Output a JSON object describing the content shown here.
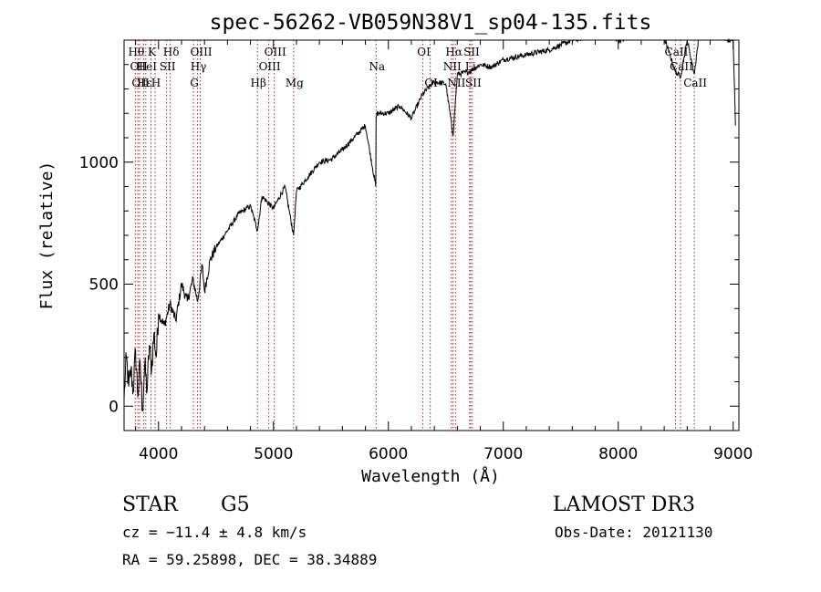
{
  "title": "spec-56262-VB059N38V1_sp04-135.fits",
  "chart_data": {
    "type": "line",
    "title": "spec-56262-VB059N38V1_sp04-135.fits",
    "xlabel": "Wavelength (Å)",
    "ylabel": "Flux (relative)",
    "xlim": [
      3700,
      9050
    ],
    "ylim": [
      -100,
      1500
    ],
    "x_ticks": [
      4000,
      5000,
      6000,
      7000,
      8000,
      9000
    ],
    "x_tick_labels": [
      "4000",
      "5000",
      "6000",
      "7000",
      "8000",
      "9000"
    ],
    "y_ticks": [
      0,
      500,
      1000
    ],
    "y_tick_labels": [
      "0",
      "500",
      "1000"
    ],
    "series": [
      {
        "name": "flux",
        "x": [
          3700,
          3720,
          3740,
          3760,
          3780,
          3800,
          3820,
          3840,
          3860,
          3880,
          3900,
          3920,
          3940,
          3960,
          3980,
          4000,
          4050,
          4100,
          4150,
          4200,
          4250,
          4300,
          4340,
          4380,
          4400,
          4450,
          4500,
          4600,
          4700,
          4800,
          4861,
          4900,
          5000,
          5100,
          5175,
          5200,
          5300,
          5400,
          5500,
          5600,
          5700,
          5800,
          5890,
          5893,
          5900,
          6000,
          6100,
          6200,
          6300,
          6400,
          6500,
          6563,
          6600,
          6700,
          6800,
          6900,
          7000,
          7200,
          7400,
          7600,
          7800,
          7900,
          8000,
          8200,
          8400,
          8498,
          8542,
          8600,
          8662,
          8700,
          8800,
          8900,
          8950,
          9000,
          9020
        ],
        "y": [
          30,
          200,
          80,
          150,
          60,
          230,
          40,
          180,
          -20,
          170,
          60,
          250,
          150,
          300,
          200,
          380,
          330,
          420,
          350,
          500,
          430,
          520,
          430,
          580,
          470,
          600,
          650,
          720,
          790,
          820,
          720,
          860,
          810,
          900,
          700,
          880,
          940,
          1000,
          1010,
          1050,
          1100,
          1150,
          900,
          1180,
          1200,
          1200,
          1230,
          1180,
          1280,
          1330,
          1320,
          1110,
          1360,
          1370,
          1400,
          1390,
          1420,
          1440,
          1460,
          1500,
          1520,
          1530,
          1500,
          1520,
          1510,
          1370,
          1350,
          1500,
          1360,
          1510,
          1520,
          1520,
          1500,
          1510,
          1150
        ]
      }
    ],
    "line_markers": [
      {
        "wave": 3798,
        "label": "Hθ",
        "row": 1
      },
      {
        "wave": 3820,
        "label": "OII",
        "row": 2
      },
      {
        "wave": 3835,
        "label": "OII",
        "row": 3
      },
      {
        "wave": 3870,
        "label": "Hε",
        "row": 3
      },
      {
        "wave": 3889,
        "label": "HeI",
        "row": 2
      },
      {
        "wave": 3934,
        "label": "K",
        "row": 1
      },
      {
        "wave": 3970,
        "label": "H",
        "row": 3
      },
      {
        "wave": 4070,
        "label": "SII",
        "row": 2
      },
      {
        "wave": 4102,
        "label": "Hδ",
        "row": 1
      },
      {
        "wave": 4304,
        "label": "G",
        "row": 3
      },
      {
        "wave": 4340,
        "label": "Hγ",
        "row": 2
      },
      {
        "wave": 4363,
        "label": "OIII",
        "row": 1
      },
      {
        "wave": 4861,
        "label": "Hβ",
        "row": 3
      },
      {
        "wave": 4959,
        "label": "OIII",
        "row": 2
      },
      {
        "wave": 5007,
        "label": "OIII",
        "row": 1
      },
      {
        "wave": 5175,
        "label": "Mg",
        "row": 3
      },
      {
        "wave": 5893,
        "label": "Na",
        "row": 2
      },
      {
        "wave": 6300,
        "label": "OI",
        "row": 1
      },
      {
        "wave": 6364,
        "label": "OI",
        "row": 3
      },
      {
        "wave": 6548,
        "label": "NII",
        "row": 2
      },
      {
        "wave": 6563,
        "label": "Hα",
        "row": 1
      },
      {
        "wave": 6584,
        "label": "NII",
        "row": 3
      },
      {
        "wave": 6707,
        "label": "Li",
        "row": 2
      },
      {
        "wave": 6716,
        "label": "SII",
        "row": 1
      },
      {
        "wave": 6731,
        "label": "SII",
        "row": 3
      },
      {
        "wave": 8498,
        "label": "CaII",
        "row": 1
      },
      {
        "wave": 8542,
        "label": "CaII",
        "row": 2
      },
      {
        "wave": 8662,
        "label": "CaII",
        "row": 3
      }
    ]
  },
  "info": {
    "class": "STAR",
    "subclass": "G5",
    "survey": "LAMOST DR3",
    "redshift": "cz = −11.4 ± 4.8 km/s",
    "obsdate": "Obs-Date: 20121130",
    "coords": "RA =  59.25898, DEC =  38.34889"
  },
  "colors": {
    "axis": "#000000",
    "spectrum": "#000000",
    "line_marker": "#b22222"
  }
}
